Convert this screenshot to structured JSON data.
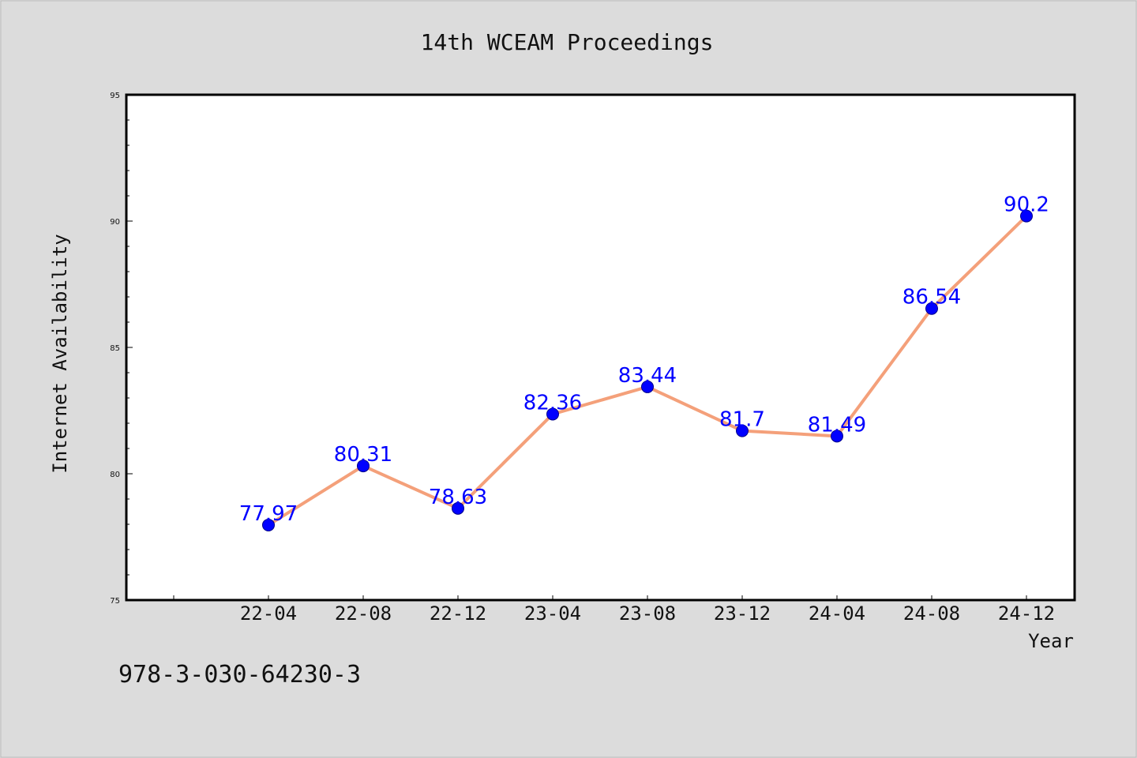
{
  "chart_data": {
    "type": "line",
    "title": "14th WCEAM Proceedings",
    "xlabel": "Year",
    "ylabel": "Internet Availability",
    "categories": [
      "22-04",
      "22-08",
      "22-12",
      "23-04",
      "23-08",
      "23-12",
      "24-04",
      "24-08",
      "24-12"
    ],
    "series": [
      {
        "values": [
          77.97,
          80.31,
          78.63,
          82.36,
          83.44,
          81.7,
          81.49,
          86.54,
          90.2
        ],
        "data_labels": [
          "77.97",
          "80.31",
          "78.63",
          "82.36",
          "83.44",
          "81.7",
          "81.49",
          "86.54",
          "90.2"
        ],
        "line_color": "#f4a07a",
        "marker_color": "#0000ff"
      }
    ],
    "ylim": [
      75,
      95
    ],
    "yticks": [
      "75",
      "80",
      "85",
      "90",
      "95"
    ],
    "grid": false,
    "legend": "none"
  },
  "footer": {
    "isbn": "978-3-030-64230-3"
  },
  "colors": {
    "background": "#dcdcdc",
    "plot_background": "#ffffff",
    "line": "#f4a07a",
    "marker": "#0000ff",
    "data_label": "#0000ff"
  }
}
